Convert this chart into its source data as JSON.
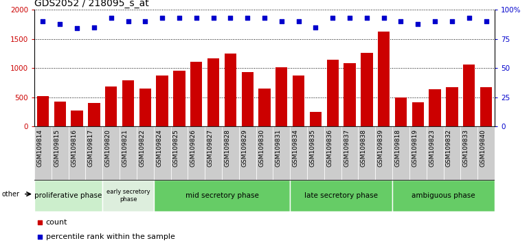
{
  "title": "GDS2052 / 218095_s_at",
  "samples": [
    "GSM109814",
    "GSM109815",
    "GSM109816",
    "GSM109817",
    "GSM109820",
    "GSM109821",
    "GSM109822",
    "GSM109824",
    "GSM109825",
    "GSM109826",
    "GSM109827",
    "GSM109828",
    "GSM109829",
    "GSM109830",
    "GSM109831",
    "GSM109834",
    "GSM109835",
    "GSM109836",
    "GSM109837",
    "GSM109838",
    "GSM109839",
    "GSM109818",
    "GSM109819",
    "GSM109823",
    "GSM109832",
    "GSM109833",
    "GSM109840"
  ],
  "counts": [
    520,
    430,
    275,
    400,
    680,
    790,
    645,
    870,
    960,
    1110,
    1165,
    1250,
    930,
    645,
    1010,
    870,
    250,
    1145,
    1085,
    1260,
    1630,
    500,
    410,
    635,
    670,
    1060,
    670
  ],
  "percentile_ranks": [
    90,
    88,
    84,
    85,
    93,
    90,
    90,
    93,
    93,
    93,
    93,
    93,
    93,
    93,
    90,
    90,
    85,
    93,
    93,
    93,
    93,
    90,
    88,
    90,
    90,
    93,
    90
  ],
  "phases": [
    {
      "name": "proliferative phase",
      "start": 0,
      "end": 4,
      "color": "#cceecc"
    },
    {
      "name": "early secretory\nphase",
      "start": 4,
      "end": 7,
      "color": "#ddeedd"
    },
    {
      "name": "mid secretory phase",
      "start": 7,
      "end": 15,
      "color": "#66cc66"
    },
    {
      "name": "late secretory phase",
      "start": 15,
      "end": 21,
      "color": "#66cc66"
    },
    {
      "name": "ambiguous phase",
      "start": 21,
      "end": 27,
      "color": "#66cc66"
    }
  ],
  "bar_color": "#cc0000",
  "dot_color": "#0000cc",
  "ylim_left": [
    0,
    2000
  ],
  "ylim_right": [
    0,
    100
  ],
  "yticks_left": [
    0,
    500,
    1000,
    1500,
    2000
  ],
  "yticks_right": [
    0,
    25,
    50,
    75,
    100
  ],
  "title_fontsize": 10,
  "label_fontsize": 7.5,
  "phase_fontsize_small": 6,
  "phase_fontsize_large": 7.5,
  "tick_label_fontsize": 6.5,
  "legend_fontsize": 8
}
